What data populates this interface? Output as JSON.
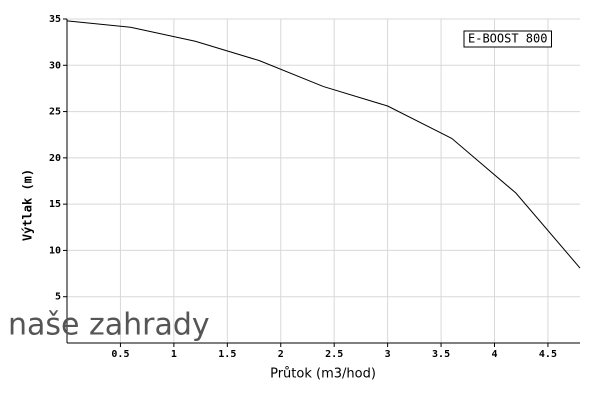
{
  "chart_data": {
    "type": "line",
    "x_label": "Průtok (m3/hod)",
    "y_label": "Výtlak (m)",
    "watermark": "naše zahrady",
    "x": [
      0,
      0.6,
      1.2,
      1.8,
      2.4,
      3.0,
      3.6,
      4.2,
      4.8
    ],
    "series": [
      {
        "name": "E-BOOST 800",
        "color": "#000000",
        "values": [
          34.8,
          34.1,
          32.6,
          30.5,
          27.7,
          25.6,
          22.1,
          16.2,
          8.1
        ]
      }
    ],
    "xlim": [
      0,
      4.8
    ],
    "xticks": [
      0.5,
      1,
      1.5,
      2,
      2.5,
      3,
      3.5,
      4,
      4.5
    ],
    "ylim": [
      0,
      35
    ],
    "yticks": [
      5,
      10,
      15,
      20,
      25,
      30,
      35
    ],
    "grid": true,
    "legend": "upper right"
  }
}
